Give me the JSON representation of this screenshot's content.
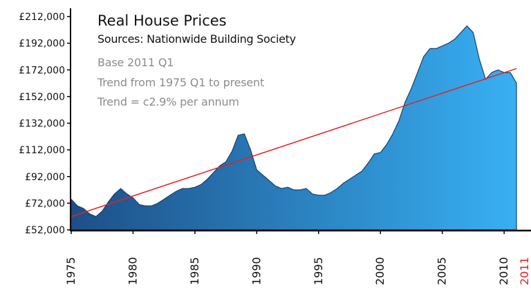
{
  "chart_data": {
    "type": "area",
    "title": "Real House Prices",
    "subtitle": "Sources: Nationwide Building Society",
    "annotations": [
      "Base 2011 Q1",
      "Trend from 1975 Q1 to present",
      "Trend = c2.9% per annum"
    ],
    "xlabel": "",
    "ylabel": "",
    "xlim": [
      1975,
      2011
    ],
    "ylim": [
      52000,
      212000
    ],
    "y_ticks": [
      52000,
      72000,
      92000,
      112000,
      132000,
      152000,
      172000,
      192000,
      212000
    ],
    "y_tick_labels": [
      "£52,000",
      "£72,000",
      "£92,000",
      "£112,000",
      "£132,000",
      "£152,000",
      "£172,000",
      "£192,000",
      "£212,000"
    ],
    "x_ticks": [
      1975,
      1980,
      1985,
      1990,
      1995,
      2000,
      2005,
      2010,
      2011
    ],
    "x_tick_labels": [
      "1975",
      "1980",
      "1985",
      "1990",
      "1995",
      "2000",
      "2005",
      "2010",
      "2011"
    ],
    "highlight_tick": "2011",
    "grid": false,
    "legend": "none",
    "series": [
      {
        "type": "area",
        "x": [
          1975.0,
          1975.5,
          1976.0,
          1976.5,
          1977.0,
          1977.5,
          1978.0,
          1978.5,
          1979.0,
          1979.5,
          1980.0,
          1980.5,
          1981.0,
          1981.5,
          1982.0,
          1982.5,
          1983.0,
          1983.5,
          1984.0,
          1984.5,
          1985.0,
          1985.5,
          1986.0,
          1986.5,
          1987.0,
          1987.5,
          1988.0,
          1988.5,
          1989.0,
          1989.5,
          1990.0,
          1990.5,
          1991.0,
          1991.5,
          1992.0,
          1992.5,
          1993.0,
          1993.5,
          1994.0,
          1994.5,
          1995.0,
          1995.5,
          1996.0,
          1996.5,
          1997.0,
          1997.5,
          1998.0,
          1998.5,
          1999.0,
          1999.5,
          2000.0,
          2000.5,
          2001.0,
          2001.5,
          2002.0,
          2002.5,
          2003.0,
          2003.5,
          2004.0,
          2004.5,
          2005.0,
          2005.5,
          2006.0,
          2006.5,
          2007.0,
          2007.5,
          2008.0,
          2008.5,
          2009.0,
          2009.5,
          2010.0,
          2010.5,
          2011.0
        ],
        "values": [
          75000,
          70000,
          68000,
          64000,
          62000,
          66000,
          73000,
          79000,
          83000,
          79000,
          76000,
          71000,
          70000,
          70000,
          72000,
          75000,
          78000,
          81000,
          83000,
          83000,
          84000,
          86000,
          90000,
          95000,
          100000,
          103000,
          111000,
          123000,
          124000,
          112000,
          97000,
          93000,
          89000,
          85000,
          83000,
          84000,
          82000,
          82000,
          83000,
          79000,
          78000,
          78000,
          80000,
          83000,
          87000,
          90000,
          93000,
          96000,
          102000,
          109000,
          110000,
          116000,
          124000,
          134000,
          148000,
          158000,
          170000,
          182000,
          188000,
          188000,
          190000,
          192000,
          195000,
          200000,
          205000,
          200000,
          180000,
          165000,
          170000,
          172000,
          170000,
          170000,
          162000
        ],
        "fill_start": "#1d4f87",
        "fill_end": "#38b0f3",
        "stroke": "#1a3f6a"
      },
      {
        "type": "line",
        "x": [
          1975,
          2011
        ],
        "values": [
          62000,
          173000
        ],
        "color": "#e62020"
      }
    ]
  }
}
